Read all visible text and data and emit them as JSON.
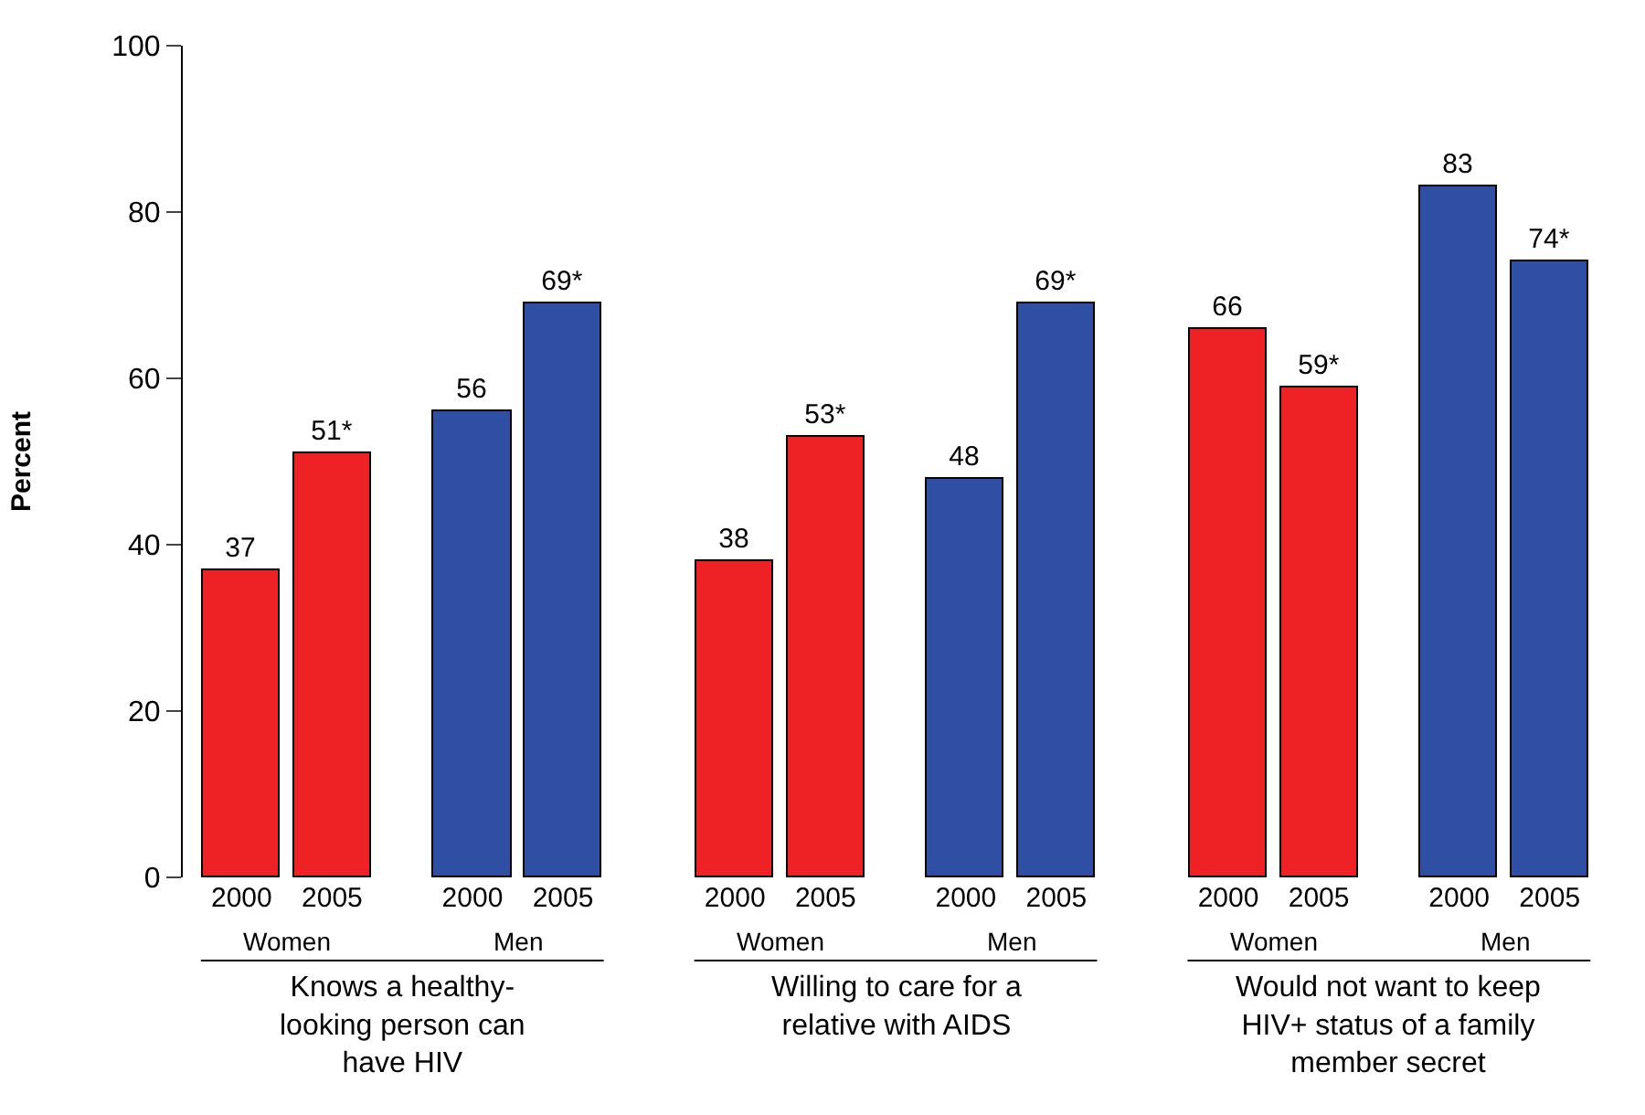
{
  "chart_data": {
    "type": "bar",
    "ylabel": "Percent",
    "categories": [
      "2000",
      "2005",
      "2000",
      "2005",
      "2000",
      "2005",
      "2000",
      "2005",
      "2000",
      "2005",
      "2000",
      "2005"
    ],
    "values": [
      37,
      51,
      56,
      69,
      38,
      53,
      48,
      69,
      66,
      59,
      83,
      74
    ],
    "colors": [
      "#ee2224",
      "#ee2224",
      "#2e4fa3",
      "#2e4fa3",
      "#ee2224",
      "#ee2224",
      "#2e4fa3",
      "#2e4fa3",
      "#ee2224",
      "#ee2224",
      "#2e4fa3",
      "#2e4fa3"
    ],
    "value_labels": [
      "37",
      "51*",
      "56",
      "69*",
      "38",
      "53*",
      "48",
      "69*",
      "66",
      "59*",
      "83",
      "74*"
    ],
    "annotations": [
      "Women",
      "Men",
      "Women",
      "Men",
      "Women",
      "Men",
      "Knows a healthy-\nlooking person can\nhave HIV",
      "Willing to care for a\nrelative with AIDS",
      "Would not want to keep\nHIV+ status of a family\nmember secret"
    ],
    "ylim": [
      0,
      100
    ],
    "yticks": [
      0,
      20,
      40,
      60,
      80,
      100
    ],
    "legend": false
  }
}
